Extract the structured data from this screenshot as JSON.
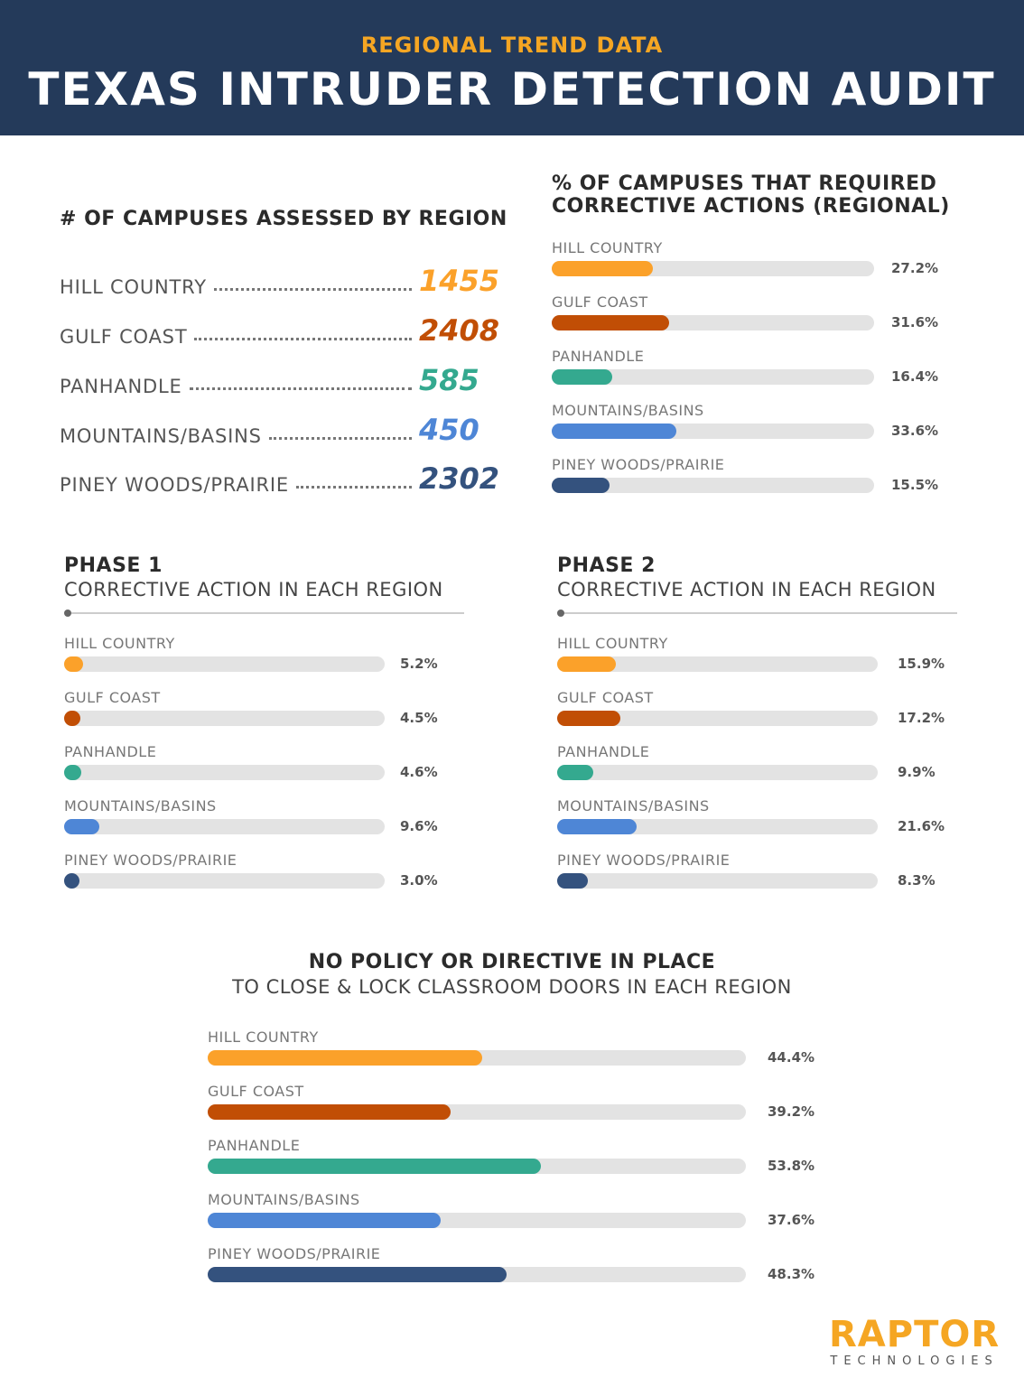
{
  "header": {
    "kicker": "REGIONAL TREND DATA",
    "title": "TEXAS INTRUDER DETECTION AUDIT"
  },
  "colors": {
    "header_bg": "#243A5A",
    "kicker": "#F5A623",
    "track": "#E3E3E3",
    "regions": [
      "#FBA12A",
      "#C14E05",
      "#34A98F",
      "#4E86D6",
      "#34527E"
    ]
  },
  "chart_data": [
    {
      "type": "table",
      "title": "# OF CAMPUSES ASSESSED BY REGION",
      "categories": [
        "HILL COUNTRY",
        "GULF COAST",
        "PANHANDLE",
        "MOUNTAINS/BASINS",
        "PINEY WOODS/PRAIRIE"
      ],
      "values": [
        1455,
        2408,
        585,
        450,
        2302
      ]
    },
    {
      "type": "bar",
      "title": "% OF CAMPUSES THAT REQUIRED CORRECTIVE ACTIONS (REGIONAL)",
      "categories": [
        "HILL COUNTRY",
        "GULF COAST",
        "PANHANDLE",
        "MOUNTAINS/BASINS",
        "PINEY WOODS/PRAIRIE"
      ],
      "values": [
        27.2,
        31.6,
        16.4,
        33.6,
        15.5
      ],
      "labels": [
        "27.2%",
        "31.6%",
        "16.4%",
        "33.6%",
        "15.5%"
      ],
      "xlim": [
        0,
        87
      ]
    },
    {
      "type": "bar",
      "title": "PHASE 1",
      "subtitle": "CORRECTIVE ACTION IN EACH REGION",
      "categories": [
        "HILL COUNTRY",
        "GULF COAST",
        "PANHANDLE",
        "MOUNTAINS/BASINS",
        "PINEY WOODS/PRAIRIE"
      ],
      "values": [
        5.2,
        4.5,
        4.6,
        9.6,
        3.0
      ],
      "labels": [
        "5.2%",
        "4.5%",
        "4.6%",
        "9.6%",
        "3.0%"
      ],
      "xlim": [
        0,
        87
      ]
    },
    {
      "type": "bar",
      "title": "PHASE 2",
      "subtitle": "CORRECTIVE ACTION IN EACH REGION",
      "categories": [
        "HILL COUNTRY",
        "GULF COAST",
        "PANHANDLE",
        "MOUNTAINS/BASINS",
        "PINEY WOODS/PRAIRIE"
      ],
      "values": [
        15.9,
        17.2,
        9.9,
        21.6,
        8.3
      ],
      "labels": [
        "15.9%",
        "17.2%",
        "9.9%",
        "21.6%",
        "8.3%"
      ],
      "xlim": [
        0,
        87
      ]
    },
    {
      "type": "bar",
      "title": "NO POLICY OR DIRECTIVE IN PLACE",
      "subtitle": "TO CLOSE & LOCK CLASSROOM DOORS IN EACH REGION",
      "categories": [
        "HILL COUNTRY",
        "GULF COAST",
        "PANHANDLE",
        "MOUNTAINS/BASINS",
        "PINEY WOODS/PRAIRIE"
      ],
      "values": [
        44.4,
        39.2,
        53.8,
        37.6,
        48.3
      ],
      "labels": [
        "44.4%",
        "39.2%",
        "53.8%",
        "37.6%",
        "48.3%"
      ],
      "xlim": [
        0,
        87
      ]
    }
  ],
  "logo": {
    "name": "RAPTOR",
    "tagline": "TECHNOLOGIES"
  }
}
